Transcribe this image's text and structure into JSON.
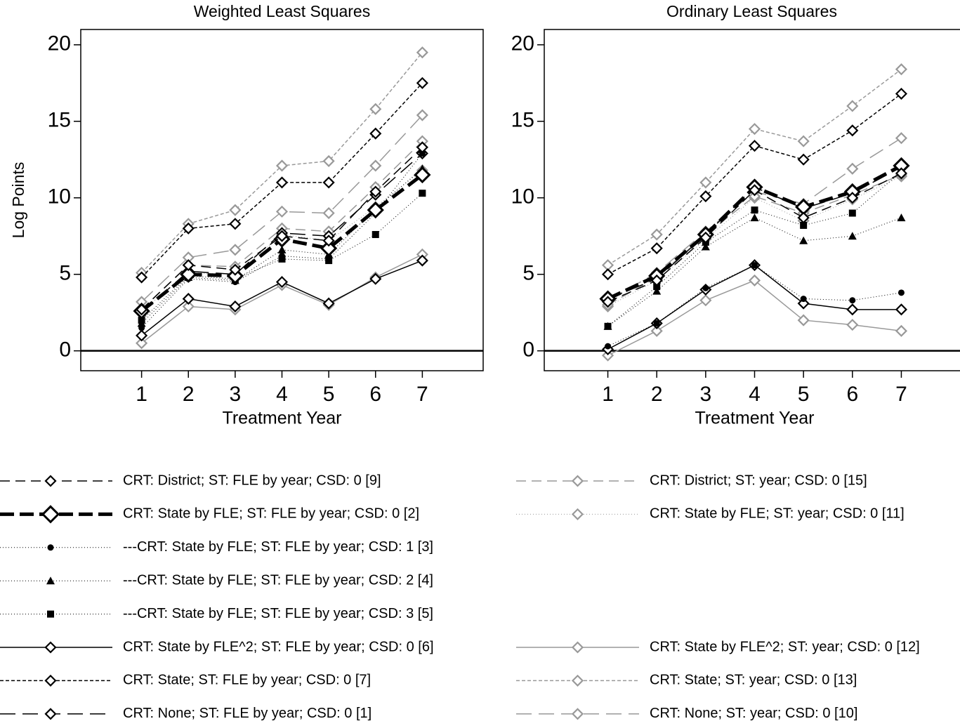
{
  "chart_data": [
    {
      "type": "line",
      "title": "Weighted Least Squares",
      "x_label": "Treatment Year",
      "y_label": "Log Points",
      "x": [
        1,
        2,
        3,
        4,
        5,
        6,
        7
      ],
      "xlim": [
        -0.3,
        8.3
      ],
      "xticks": [
        1,
        2,
        3,
        4,
        5,
        6,
        7
      ],
      "ylim": [
        -1.3,
        21
      ],
      "yticks": [
        0,
        5,
        10,
        15,
        20
      ],
      "zero_line": true,
      "series": [
        {
          "name": "CRT: District; ST: FLE by year; CSD: 0 [9]",
          "color": "#000000",
          "dash": "14 8",
          "width": 1.5,
          "marker": "diamond",
          "values": [
            2.7,
            5.6,
            5.3,
            7.5,
            7.2,
            10.4,
            13.3
          ]
        },
        {
          "name": "CRT: State by FLE; ST: FLE by year; CSD: 0 [2]",
          "color": "#000000",
          "dash": "20 8",
          "width": 5,
          "marker": "diamond",
          "values": [
            2.6,
            5.0,
            4.9,
            7.3,
            6.7,
            9.2,
            11.5
          ]
        },
        {
          "name": "---CRT: State by FLE; ST: FLE by year; CSD: 1 [3]",
          "color": "#000000",
          "dash": "1 3",
          "width": 1,
          "marker": "circle",
          "values": [
            1.5,
            4.7,
            4.5,
            6.2,
            6.0,
            9.0,
            12.9
          ]
        },
        {
          "name": "---CRT: State by FLE; ST: FLE by year; CSD: 2 [4]",
          "color": "#000000",
          "dash": "1 3",
          "width": 1,
          "marker": "triangle",
          "values": [
            1.8,
            4.8,
            4.6,
            6.6,
            6.3,
            9.3,
            11.9
          ]
        },
        {
          "name": "---CRT: State by FLE; ST: FLE by year; CSD: 3 [5]",
          "color": "#000000",
          "dash": "1 3",
          "width": 1,
          "marker": "square",
          "values": [
            2.0,
            4.9,
            4.7,
            6.0,
            5.9,
            7.6,
            10.3
          ]
        },
        {
          "name": "CRT: State by FLE^2; ST: FLE by year; CSD: 0 [6]",
          "color": "#000000",
          "dash": "none",
          "width": 1.5,
          "marker": "diamond",
          "values": [
            1.0,
            3.4,
            2.9,
            4.5,
            3.1,
            4.7,
            5.9
          ]
        },
        {
          "name": "CRT: State; ST: FLE by year; CSD: 0 [7]",
          "color": "#000000",
          "dash": "5 3",
          "width": 1.5,
          "marker": "diamond",
          "values": [
            4.8,
            8.0,
            8.3,
            11.0,
            11.0,
            14.2,
            17.5
          ]
        },
        {
          "name": "CRT: None; ST: FLE by year; CSD: 0 [1]",
          "color": "#000000",
          "dash": "22 10",
          "width": 1.5,
          "marker": "diamond",
          "values": [
            2.5,
            5.2,
            5.0,
            7.7,
            7.5,
            10.2,
            12.9
          ]
        },
        {
          "name": "CRT: District; ST: year; CSD: 0 [15]",
          "color": "#999999",
          "dash": "14 8",
          "width": 1.5,
          "marker": "diamond",
          "values": [
            2.7,
            5.6,
            5.5,
            8.0,
            7.8,
            10.7,
            13.7
          ]
        },
        {
          "name": "CRT: State by FLE; ST: year; CSD: 0 [11]",
          "color": "#999999",
          "dash": "1 3",
          "width": 1,
          "marker": "diamond",
          "values": [
            2.6,
            5.1,
            5.0,
            7.6,
            7.2,
            9.4,
            11.8
          ]
        },
        {
          "name": "CRT: State by FLE^2; ST: year; CSD: 0 [12]",
          "color": "#999999",
          "dash": "none",
          "width": 1.5,
          "marker": "diamond",
          "values": [
            0.5,
            2.9,
            2.7,
            4.3,
            3.0,
            4.8,
            6.3
          ]
        },
        {
          "name": "CRT: State; ST: year; CSD: 0 [13]",
          "color": "#999999",
          "dash": "5 3",
          "width": 1.5,
          "marker": "diamond",
          "values": [
            5.1,
            8.3,
            9.2,
            12.1,
            12.4,
            15.8,
            19.5
          ]
        },
        {
          "name": "CRT: None; ST: year; CSD: 0 [10]",
          "color": "#999999",
          "dash": "22 10",
          "width": 1.5,
          "marker": "diamond",
          "values": [
            3.2,
            6.1,
            6.6,
            9.1,
            9.0,
            12.1,
            15.4
          ]
        }
      ]
    },
    {
      "type": "line",
      "title": "Ordinary Least Squares",
      "x_label": "Treatment Year",
      "x": [
        1,
        2,
        3,
        4,
        5,
        6,
        7
      ],
      "xlim": [
        -0.3,
        8.3
      ],
      "xticks": [
        1,
        2,
        3,
        4,
        5,
        6,
        7
      ],
      "ylim": [
        -1.3,
        21
      ],
      "yticks": [
        0,
        5,
        10,
        15,
        20
      ],
      "zero_line": true,
      "series": [
        {
          "values": [
            3.2,
            4.6,
            7.4,
            10.5,
            8.7,
            10.0,
            11.6
          ]
        },
        {
          "values": [
            3.4,
            4.9,
            7.6,
            10.7,
            9.4,
            10.4,
            12.1
          ]
        },
        {
          "values": [
            0.3,
            1.8,
            4.1,
            5.6,
            3.4,
            3.3,
            3.8
          ]
        },
        {
          "values": [
            1.6,
            3.9,
            6.8,
            8.7,
            7.2,
            7.5,
            8.7
          ]
        },
        {
          "values": [
            1.6,
            4.2,
            7.1,
            9.2,
            8.2,
            9.0,
            11.7
          ]
        },
        {
          "values": [
            0.1,
            1.8,
            4.0,
            5.6,
            3.1,
            2.7,
            2.7
          ]
        },
        {
          "values": [
            5.0,
            6.7,
            10.1,
            13.4,
            12.5,
            14.4,
            16.8
          ]
        },
        {
          "values": [
            3.4,
            4.7,
            7.6,
            10.7,
            9.3,
            10.3,
            12.0
          ]
        },
        {
          "values": [
            3.0,
            4.8,
            7.6,
            10.1,
            9.0,
            10.2,
            11.5
          ]
        },
        {
          "values": [
            2.9,
            4.6,
            7.3,
            10.0,
            8.5,
            9.9,
            11.4
          ]
        },
        {
          "values": [
            -0.3,
            1.3,
            3.3,
            4.6,
            2.0,
            1.7,
            1.3
          ]
        },
        {
          "values": [
            5.6,
            7.6,
            11.0,
            14.5,
            13.7,
            16.0,
            18.4
          ]
        },
        {
          "values": [
            3.3,
            5.1,
            7.8,
            10.4,
            9.6,
            11.9,
            13.9
          ]
        }
      ]
    }
  ]
}
